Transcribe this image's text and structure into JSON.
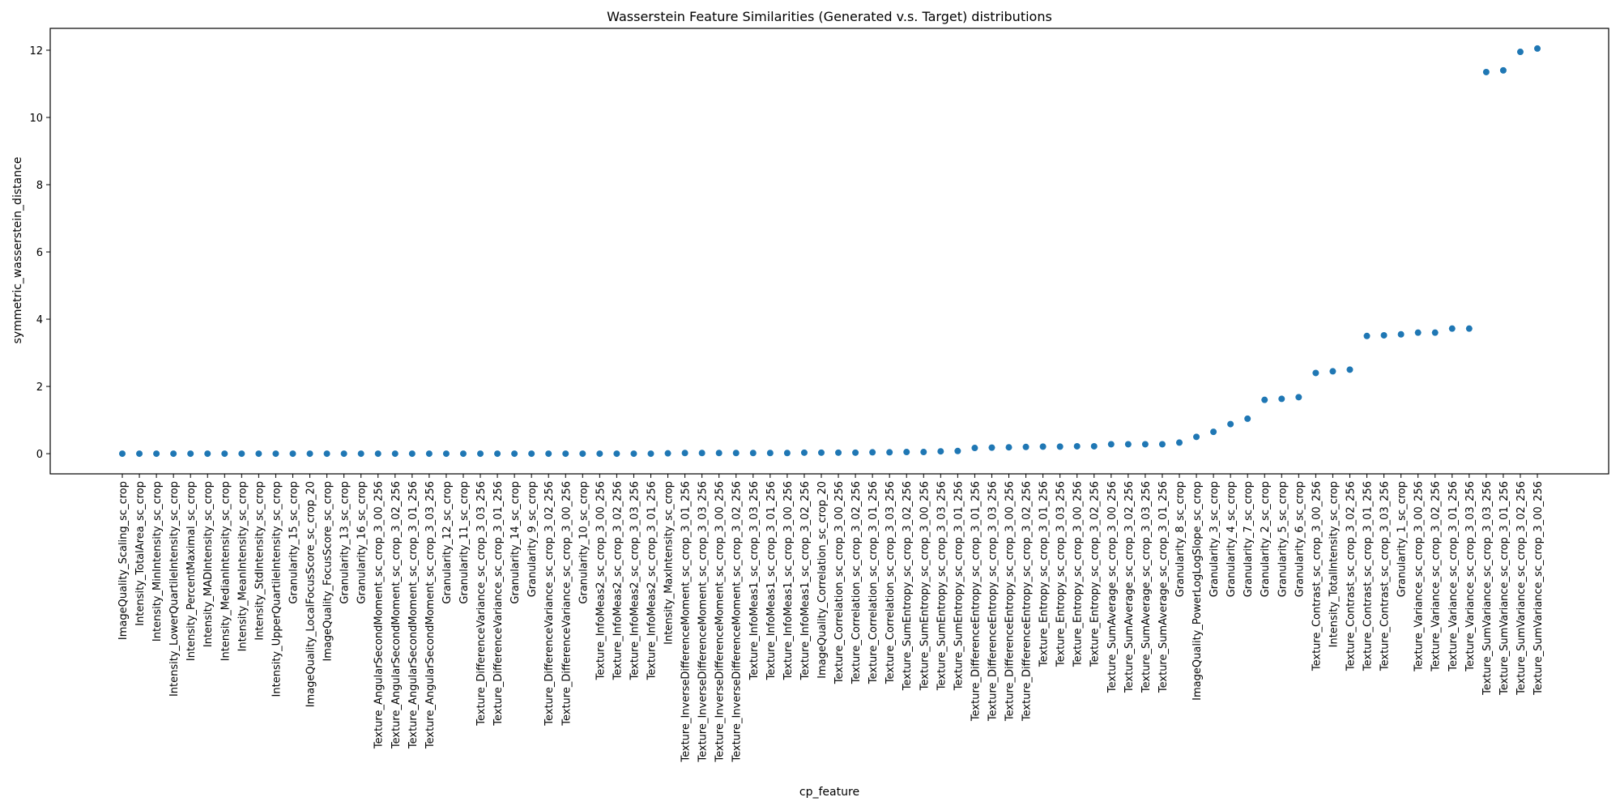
{
  "chart_data": {
    "type": "scatter",
    "title": "Wasserstein Feature Similarities (Generated v.s. Target) distributions",
    "xlabel": "cp_feature",
    "ylabel": "symmetric_wasserstein_distance",
    "ylim": [
      -0.6,
      12.65
    ],
    "yticks": [
      0,
      2,
      4,
      6,
      8,
      10,
      12
    ],
    "grid": false,
    "marker_color": "#1f77b4",
    "categories": [
      "ImageQuality_Scaling_sc_crop",
      "Intensity_TotalArea_sc_crop",
      "Intensity_MinIntensity_sc_crop",
      "Intensity_LowerQuartileIntensity_sc_crop",
      "Intensity_PercentMaximal_sc_crop",
      "Intensity_MADIntensity_sc_crop",
      "Intensity_MedianIntensity_sc_crop",
      "Intensity_MeanIntensity_sc_crop",
      "Intensity_StdIntensity_sc_crop",
      "Intensity_UpperQuartileIntensity_sc_crop",
      "Granularity_15_sc_crop",
      "ImageQuality_LocalFocusScore_sc_crop_20",
      "ImageQuality_FocusScore_sc_crop",
      "Granularity_13_sc_crop",
      "Granularity_16_sc_crop",
      "Texture_AngularSecondMoment_sc_crop_3_00_256",
      "Texture_AngularSecondMoment_sc_crop_3_02_256",
      "Texture_AngularSecondMoment_sc_crop_3_01_256",
      "Texture_AngularSecondMoment_sc_crop_3_03_256",
      "Granularity_12_sc_crop",
      "Granularity_11_sc_crop",
      "Texture_DifferenceVariance_sc_crop_3_03_256",
      "Texture_DifferenceVariance_sc_crop_3_01_256",
      "Granularity_14_sc_crop",
      "Granularity_9_sc_crop",
      "Texture_DifferenceVariance_sc_crop_3_02_256",
      "Texture_DifferenceVariance_sc_crop_3_00_256",
      "Granularity_10_sc_crop",
      "Texture_InfoMeas2_sc_crop_3_00_256",
      "Texture_InfoMeas2_sc_crop_3_02_256",
      "Texture_InfoMeas2_sc_crop_3_03_256",
      "Texture_InfoMeas2_sc_crop_3_01_256",
      "Intensity_MaxIntensity_sc_crop",
      "Texture_InverseDifferenceMoment_sc_crop_3_01_256",
      "Texture_InverseDifferenceMoment_sc_crop_3_03_256",
      "Texture_InverseDifferenceMoment_sc_crop_3_00_256",
      "Texture_InverseDifferenceMoment_sc_crop_3_02_256",
      "Texture_InfoMeas1_sc_crop_3_03_256",
      "Texture_InfoMeas1_sc_crop_3_01_256",
      "Texture_InfoMeas1_sc_crop_3_00_256",
      "Texture_InfoMeas1_sc_crop_3_02_256",
      "ImageQuality_Correlation_sc_crop_20",
      "Texture_Correlation_sc_crop_3_00_256",
      "Texture_Correlation_sc_crop_3_02_256",
      "Texture_Correlation_sc_crop_3_01_256",
      "Texture_Correlation_sc_crop_3_03_256",
      "Texture_SumEntropy_sc_crop_3_02_256",
      "Texture_SumEntropy_sc_crop_3_00_256",
      "Texture_SumEntropy_sc_crop_3_03_256",
      "Texture_SumEntropy_sc_crop_3_01_256",
      "Texture_DifferenceEntropy_sc_crop_3_01_256",
      "Texture_DifferenceEntropy_sc_crop_3_03_256",
      "Texture_DifferenceEntropy_sc_crop_3_00_256",
      "Texture_DifferenceEntropy_sc_crop_3_02_256",
      "Texture_Entropy_sc_crop_3_01_256",
      "Texture_Entropy_sc_crop_3_03_256",
      "Texture_Entropy_sc_crop_3_00_256",
      "Texture_Entropy_sc_crop_3_02_256",
      "Texture_SumAverage_sc_crop_3_00_256",
      "Texture_SumAverage_sc_crop_3_02_256",
      "Texture_SumAverage_sc_crop_3_03_256",
      "Texture_SumAverage_sc_crop_3_01_256",
      "Granularity_8_sc_crop",
      "ImageQuality_PowerLogLogSlope_sc_crop",
      "Granularity_3_sc_crop",
      "Granularity_4_sc_crop",
      "Granularity_7_sc_crop",
      "Granularity_2_sc_crop",
      "Granularity_5_sc_crop",
      "Granularity_6_sc_crop",
      "Texture_Contrast_sc_crop_3_00_256",
      "Intensity_TotalIntensity_sc_crop",
      "Texture_Contrast_sc_crop_3_02_256",
      "Texture_Contrast_sc_crop_3_01_256",
      "Texture_Contrast_sc_crop_3_03_256",
      "Granularity_1_sc_crop",
      "Texture_Variance_sc_crop_3_00_256",
      "Texture_Variance_sc_crop_3_02_256",
      "Texture_Variance_sc_crop_3_01_256",
      "Texture_Variance_sc_crop_3_03_256",
      "Texture_SumVariance_sc_crop_3_03_256",
      "Texture_SumVariance_sc_crop_3_01_256",
      "Texture_SumVariance_sc_crop_3_02_256",
      "Texture_SumVariance_sc_crop_3_00_256"
    ],
    "values": [
      0.0,
      0.0,
      0.0,
      0.0,
      0.0,
      0.0,
      0.0,
      0.0,
      0.0,
      0.0,
      0.0,
      0.0,
      0.0,
      0.0,
      0.0,
      0.0,
      0.0,
      0.0,
      0.0,
      0.0,
      0.0,
      0.0,
      0.0,
      0.0,
      0.0,
      0.0,
      0.0,
      0.0,
      0.0,
      0.0,
      0.0,
      0.0,
      0.01,
      0.02,
      0.02,
      0.02,
      0.02,
      0.02,
      0.02,
      0.02,
      0.03,
      0.03,
      0.03,
      0.03,
      0.04,
      0.04,
      0.05,
      0.05,
      0.07,
      0.08,
      0.17,
      0.18,
      0.19,
      0.2,
      0.21,
      0.21,
      0.22,
      0.22,
      0.28,
      0.28,
      0.28,
      0.28,
      0.33,
      0.5,
      0.65,
      0.88,
      1.04,
      1.6,
      1.63,
      1.68,
      2.4,
      2.45,
      2.5,
      3.5,
      3.52,
      3.55,
      3.6,
      3.6,
      3.72,
      3.72,
      11.35,
      11.4,
      11.95,
      12.05
    ]
  }
}
